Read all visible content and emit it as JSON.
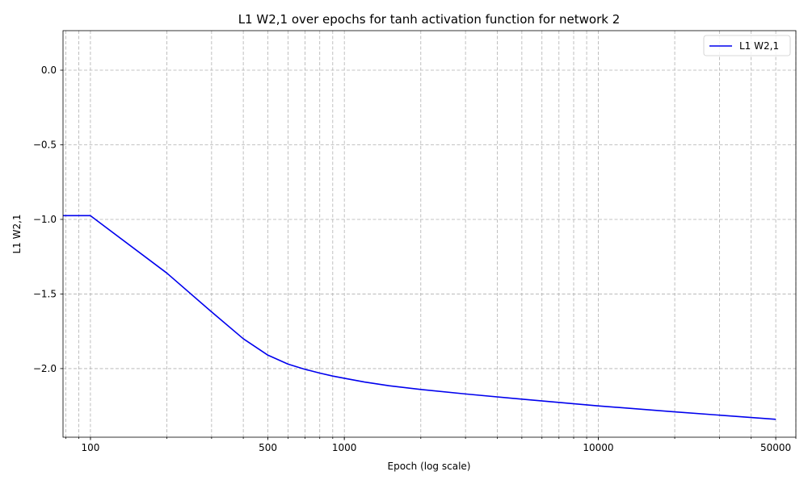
{
  "chart_data": {
    "type": "line",
    "title": "L1 W2,1 over epochs for tanh activation function for network 2",
    "xlabel": "Epoch (log scale)",
    "ylabel": "L1 W2,1",
    "xscale": "log",
    "xlim": [
      78,
      60000
    ],
    "ylim": [
      -2.46,
      0.265
    ],
    "xticks": [
      100,
      500,
      1000,
      10000,
      50000
    ],
    "xtick_labels": [
      "100",
      "500",
      "1000",
      "10000",
      "50000"
    ],
    "yticks": [
      0.0,
      -0.5,
      -1.0,
      -1.5,
      -2.0
    ],
    "ytick_labels": [
      "0.0",
      "−0.5",
      "−1.0",
      "−1.5",
      "−2.0"
    ],
    "grid": true,
    "legend_position": "top-right",
    "series": [
      {
        "name": "L1 W2,1",
        "color": "#0000ee",
        "x": [
          1,
          100,
          200,
          300,
          400,
          500,
          600,
          700,
          800,
          900,
          1000,
          1200,
          1500,
          2000,
          3000,
          5000,
          10000,
          20000,
          50000
        ],
        "y": [
          -0.975,
          -0.975,
          -1.36,
          -1.62,
          -1.8,
          -1.91,
          -1.97,
          -2.005,
          -2.03,
          -2.05,
          -2.065,
          -2.09,
          -2.115,
          -2.14,
          -2.17,
          -2.205,
          -2.25,
          -2.29,
          -2.34
        ]
      }
    ]
  }
}
